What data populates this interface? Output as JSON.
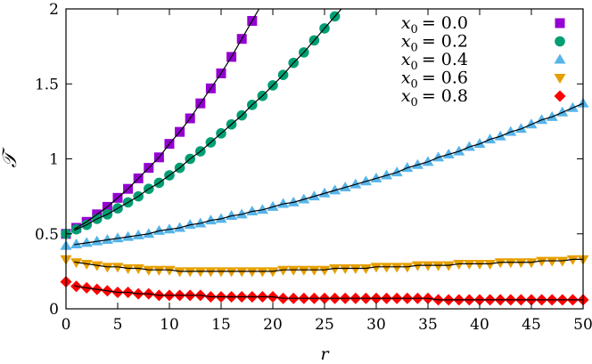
{
  "chart_data": {
    "type": "scatter",
    "title": "",
    "xlabel": "r",
    "ylabel": "𝒯",
    "xlim": [
      0,
      50
    ],
    "ylim": [
      0,
      2
    ],
    "xticks": [
      "0",
      "5",
      "10",
      "15",
      "20",
      "25",
      "30",
      "35",
      "40",
      "45",
      "50"
    ],
    "yticks": [
      "0",
      "0.5",
      "1",
      "1.5",
      "2"
    ],
    "xtick_values": [
      0,
      5,
      10,
      15,
      20,
      25,
      30,
      35,
      40,
      45,
      50
    ],
    "ytick_values": [
      0,
      0.5,
      1,
      1.5,
      2
    ],
    "grid": false,
    "legend_placement": "top-right",
    "fit_lines": true,
    "series": [
      {
        "name": "x_0 = 0.0",
        "label_var": "x",
        "label_sub": "0",
        "label_val": "= 0.0",
        "marker": "square",
        "color": "#9400d3",
        "values": [
          0.5,
          0.54,
          0.58,
          0.63,
          0.68,
          0.74,
          0.8,
          0.87,
          0.94,
          1.01,
          1.1,
          1.18,
          1.27,
          1.37,
          1.47,
          1.57,
          1.68,
          1.8,
          1.92
        ]
      },
      {
        "name": "x_0 = 0.2",
        "label_var": "x",
        "label_sub": "0",
        "label_val": "= 0.2",
        "marker": "circle",
        "color": "#009e73",
        "values": [
          0.5,
          0.53,
          0.56,
          0.6,
          0.63,
          0.67,
          0.71,
          0.75,
          0.8,
          0.84,
          0.89,
          0.94,
          1.0,
          1.05,
          1.11,
          1.17,
          1.23,
          1.29,
          1.36,
          1.42,
          1.49,
          1.56,
          1.64,
          1.71,
          1.79,
          1.87,
          1.95
        ]
      },
      {
        "name": "x_0 = 0.4",
        "label_var": "x",
        "label_sub": "0",
        "label_val": "= 0.4",
        "marker": "triangle-up",
        "color": "#56b4e9",
        "values": [
          0.42,
          0.43,
          0.44,
          0.45,
          0.46,
          0.47,
          0.48,
          0.49,
          0.5,
          0.52,
          0.53,
          0.54,
          0.56,
          0.57,
          0.59,
          0.6,
          0.62,
          0.63,
          0.65,
          0.66,
          0.68,
          0.7,
          0.71,
          0.73,
          0.75,
          0.77,
          0.79,
          0.81,
          0.83,
          0.85,
          0.87,
          0.89,
          0.91,
          0.94,
          0.96,
          0.98,
          1.01,
          1.03,
          1.05,
          1.08,
          1.1,
          1.13,
          1.15,
          1.18,
          1.2,
          1.23,
          1.26,
          1.28,
          1.31,
          1.34,
          1.37
        ]
      },
      {
        "name": "x_0 = 0.6",
        "label_var": "x",
        "label_sub": "0",
        "label_val": "= 0.6",
        "marker": "triangle-down",
        "color": "#e69f00",
        "values": [
          0.33,
          0.31,
          0.3,
          0.29,
          0.28,
          0.28,
          0.27,
          0.27,
          0.26,
          0.26,
          0.26,
          0.25,
          0.25,
          0.25,
          0.25,
          0.25,
          0.25,
          0.25,
          0.25,
          0.25,
          0.25,
          0.26,
          0.26,
          0.26,
          0.26,
          0.26,
          0.27,
          0.27,
          0.27,
          0.27,
          0.28,
          0.28,
          0.28,
          0.28,
          0.29,
          0.29,
          0.29,
          0.29,
          0.3,
          0.3,
          0.3,
          0.3,
          0.31,
          0.31,
          0.31,
          0.31,
          0.32,
          0.32,
          0.32,
          0.33,
          0.33
        ]
      },
      {
        "name": "x_0 = 0.8",
        "label_var": "x",
        "label_sub": "0",
        "label_val": "= 0.8",
        "marker": "diamond",
        "color": "#ff0000",
        "values": [
          0.18,
          0.15,
          0.14,
          0.13,
          0.12,
          0.11,
          0.11,
          0.1,
          0.1,
          0.09,
          0.09,
          0.09,
          0.09,
          0.09,
          0.08,
          0.08,
          0.08,
          0.08,
          0.08,
          0.08,
          0.08,
          0.07,
          0.07,
          0.07,
          0.07,
          0.07,
          0.07,
          0.07,
          0.07,
          0.07,
          0.07,
          0.07,
          0.07,
          0.07,
          0.07,
          0.07,
          0.06,
          0.06,
          0.06,
          0.06,
          0.06,
          0.06,
          0.06,
          0.06,
          0.06,
          0.06,
          0.06,
          0.06,
          0.06,
          0.06,
          0.06
        ]
      }
    ]
  }
}
